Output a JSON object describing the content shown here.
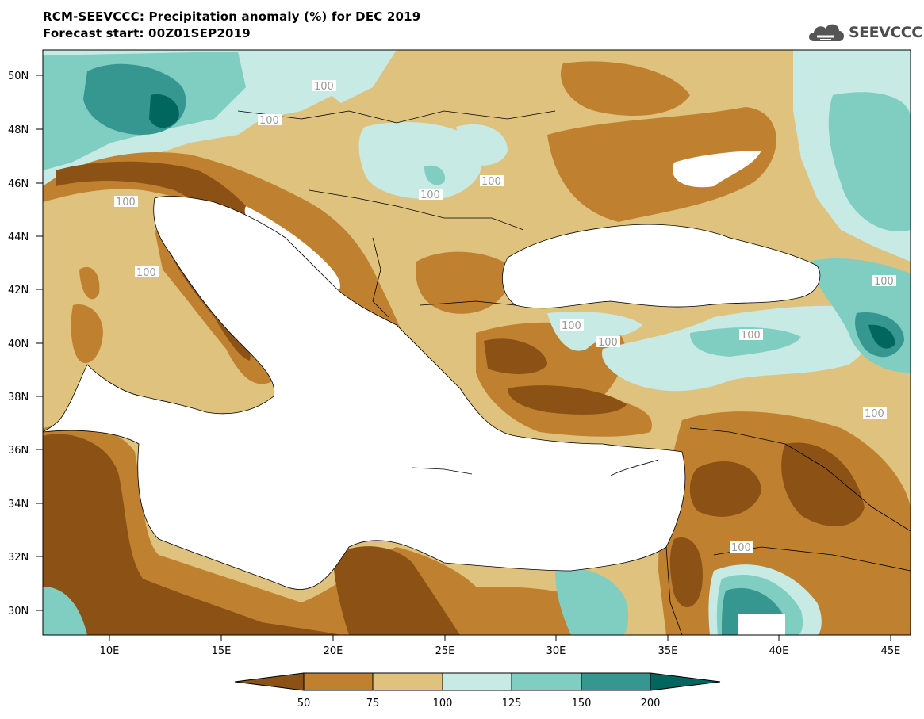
{
  "title": {
    "line1": "RCM-SEEVCCC: Precipitation anomaly (%) for DEC 2019",
    "line2": "Forecast start: 00Z01SEP2019"
  },
  "logo": {
    "text": "SEEVCCC",
    "icon": "cloud-icon"
  },
  "map": {
    "lat_labels": [
      "50N",
      "48N",
      "46N",
      "44N",
      "42N",
      "40N",
      "38N",
      "36N",
      "34N",
      "32N",
      "30N"
    ],
    "lon_labels": [
      "10E",
      "15E",
      "20E",
      "25E",
      "30E",
      "35E",
      "40E",
      "45E"
    ],
    "contour_label": "100",
    "colors": {
      "below_50": "#8c5114",
      "50_75": "#bf8130",
      "75_100": "#dfc27d",
      "100_125": "#c7eae5",
      "125_150": "#80cdc1",
      "150_200": "#35978f",
      "above_200": "#01665e",
      "sea": "#ffffff"
    }
  },
  "colorbar": {
    "ticks": [
      "50",
      "75",
      "100",
      "125",
      "150",
      "200"
    ],
    "colors": [
      "#8c5114",
      "#bf8130",
      "#dfc27d",
      "#c7eae5",
      "#80cdc1",
      "#35978f",
      "#01665e"
    ]
  }
}
